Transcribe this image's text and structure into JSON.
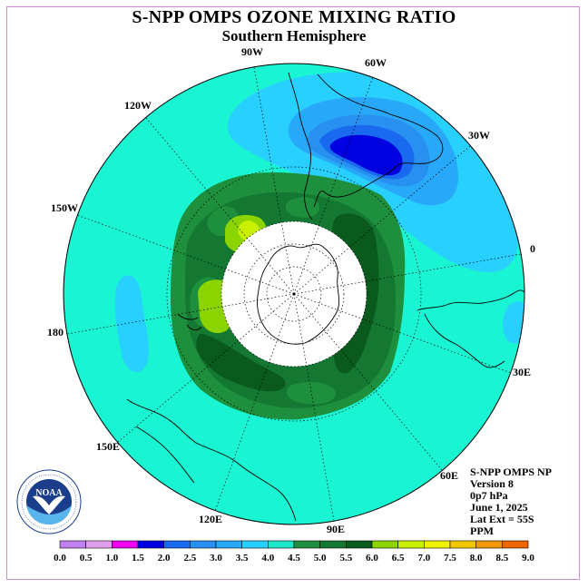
{
  "title": "S-NPP OMPS OZONE MIXING RATIO",
  "subtitle": "Southern Hemisphere",
  "lon_labels": [
    {
      "id": "90w",
      "text": "90W"
    },
    {
      "id": "60w",
      "text": "60W"
    },
    {
      "id": "30w",
      "text": "30W"
    },
    {
      "id": "0",
      "text": "0"
    },
    {
      "id": "30e",
      "text": "30E"
    },
    {
      "id": "60e",
      "text": "60E"
    },
    {
      "id": "90e",
      "text": "90E"
    },
    {
      "id": "120e",
      "text": "120E"
    },
    {
      "id": "150e",
      "text": "150E"
    },
    {
      "id": "180",
      "text": "180"
    },
    {
      "id": "150w",
      "text": "150W"
    },
    {
      "id": "120w",
      "text": "120W"
    }
  ],
  "info": {
    "product": "S-NPP OMPS NP",
    "version": "Version 8",
    "level": "0p7 hPa",
    "date": "June 1, 2025",
    "lat_ext": "Lat Ext = 55S",
    "units": "PPM"
  },
  "logo": {
    "text": "NOAA",
    "icon": "noaa-logo-icon"
  },
  "colorbar": {
    "labels": [
      "0.0",
      "0.5",
      "1.0",
      "1.5",
      "2.0",
      "2.5",
      "3.0",
      "3.5",
      "4.0",
      "4.5",
      "5.0",
      "5.5",
      "6.0",
      "6.5",
      "7.0",
      "7.5",
      "8.0",
      "8.5",
      "9.0"
    ],
    "colors": [
      "#c080f0",
      "#e0a0f0",
      "#f000f0",
      "#0000e0",
      "#1a6af0",
      "#2890f0",
      "#28a8f8",
      "#28d0ff",
      "#1ee6c8",
      "#1e8f3c",
      "#147832",
      "#0a5a1e",
      "#8cd400",
      "#c8f000",
      "#f0f000",
      "#f0c800",
      "#f09600",
      "#f06400",
      "#f00000",
      "#a05028"
    ]
  },
  "colors": {
    "background_field": "#19f5d2",
    "polar_cap": "#ffffff",
    "frame": "#d08ad6"
  }
}
